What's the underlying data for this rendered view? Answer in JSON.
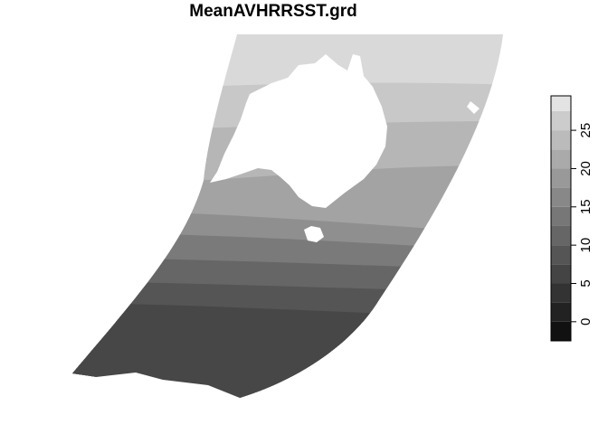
{
  "title": "MeanAVHRRSST.grd",
  "colors": {
    "background": "#ffffff",
    "band_0": "#d9d9d9",
    "band_1": "#c8c8c8",
    "band_2": "#b6b6b6",
    "band_3": "#a3a3a3",
    "band_4": "#8f8f8f",
    "band_5": "#7a7a7a",
    "band_6": "#666666",
    "band_7": "#555555",
    "band_8": "#474747",
    "land": "#ffffff"
  },
  "legend": {
    "min": -2.5,
    "max": 29.5,
    "breaks": [
      -2.5,
      0,
      2.5,
      5,
      7.5,
      10,
      12.5,
      15,
      17.5,
      20,
      22.5,
      25,
      27.5,
      29.5
    ],
    "colors": [
      "#111111",
      "#222222",
      "#333333",
      "#444444",
      "#555555",
      "#666666",
      "#777777",
      "#888888",
      "#999999",
      "#aaaaaa",
      "#bbbbbb",
      "#cccccc",
      "#e3e3e3"
    ],
    "ticks": [
      {
        "value": 0,
        "label": "0"
      },
      {
        "value": 5,
        "label": "5"
      },
      {
        "value": 10,
        "label": "10"
      },
      {
        "value": 15,
        "label": "15"
      },
      {
        "value": 20,
        "label": "20"
      },
      {
        "value": 25,
        "label": "25"
      }
    ]
  }
}
